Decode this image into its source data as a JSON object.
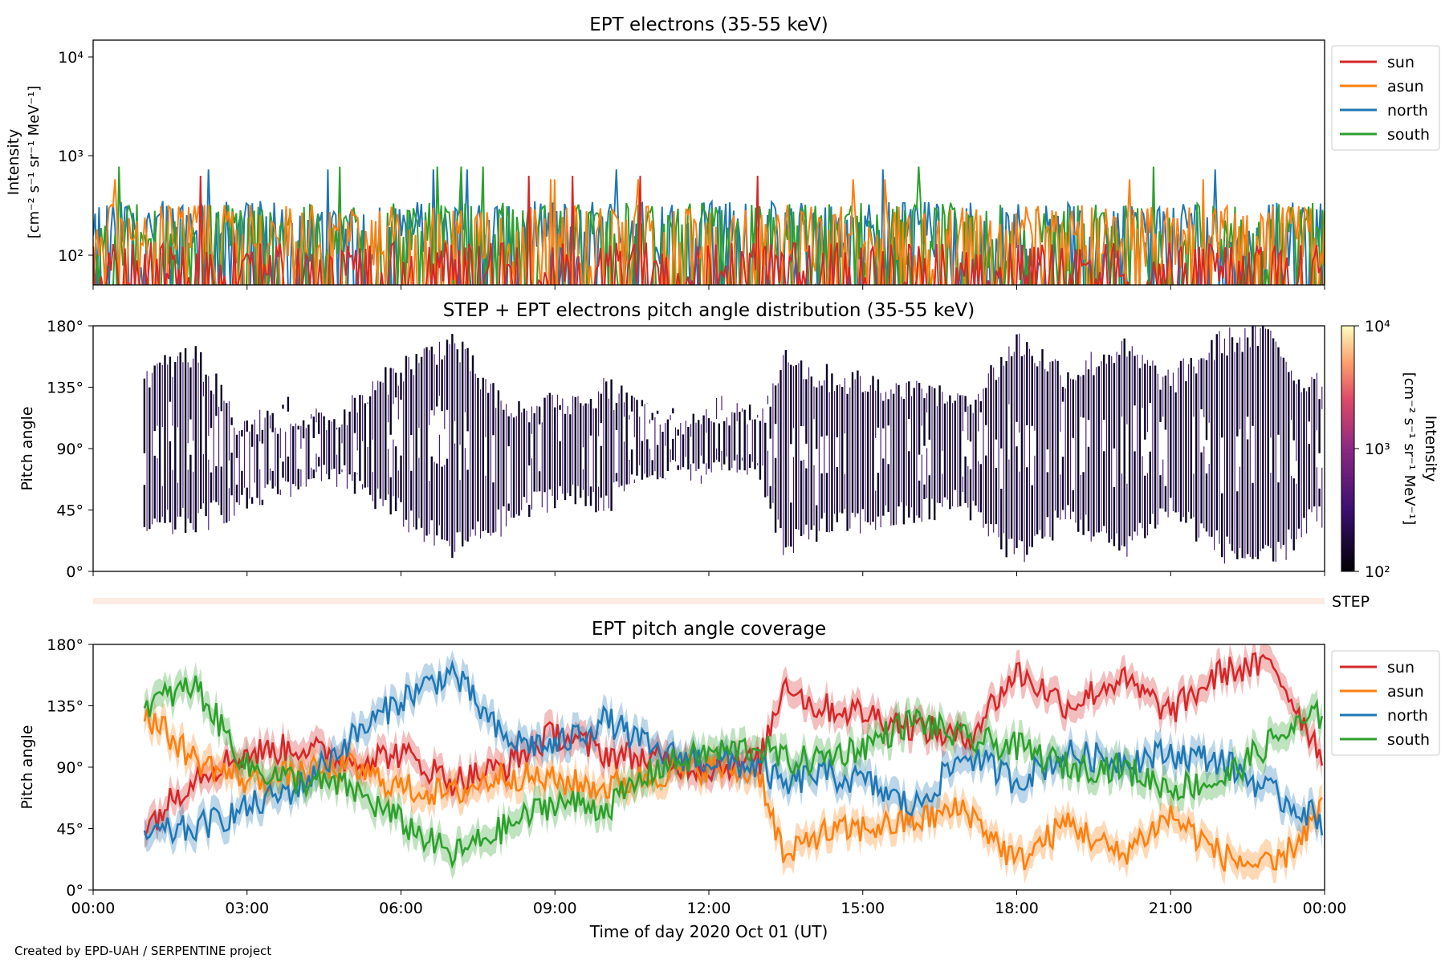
{
  "figure": {
    "credit": "Created by EPD-UAH / SERPENTINE project",
    "xlabel": "Time of day 2020 Oct 01 (UT)",
    "xticks": [
      "00:00",
      "03:00",
      "06:00",
      "09:00",
      "12:00",
      "15:00",
      "18:00",
      "21:00",
      "00:00"
    ],
    "colors": {
      "sun": "#d62728",
      "asun": "#ff7f0e",
      "north": "#1f77b4",
      "south": "#2ca02c"
    },
    "step_band_label": "STEP"
  },
  "chart_data": [
    {
      "type": "line",
      "title": "EPT electrons (35-55 keV)",
      "ylabel_line1": "Intensity",
      "ylabel_line2": "[cm⁻² s⁻¹ sr⁻¹ MeV⁻¹]",
      "yscale": "log",
      "ylim": [
        55,
        14000
      ],
      "yticks": [
        "10²",
        "10³",
        "10⁴"
      ],
      "xlim_hours": [
        0,
        24
      ],
      "legend_placement": "outside-top-right",
      "series": [
        {
          "name": "sun",
          "color": "#d62728",
          "baseline": 90,
          "peak": 650
        },
        {
          "name": "asun",
          "color": "#ff7f0e",
          "baseline": 210,
          "peak": 600
        },
        {
          "name": "north",
          "color": "#1f77b4",
          "baseline": 230,
          "peak": 750
        },
        {
          "name": "south",
          "color": "#2ca02c",
          "baseline": 220,
          "peak": 800
        }
      ]
    },
    {
      "type": "heatmap",
      "title": "STEP + EPT electrons pitch angle distribution (35-55 keV)",
      "ylabel": "Pitch angle",
      "yticks": [
        "0°",
        "45°",
        "90°",
        "135°",
        "180°"
      ],
      "ylim": [
        0,
        180
      ],
      "colorbar": {
        "label_line1": "Intensity",
        "label_line2": "[cm⁻² s⁻¹ sr⁻¹ MeV⁻¹]",
        "scale": "log",
        "range": [
          100,
          10000
        ],
        "ticks": [
          "10²",
          "10³",
          "10⁴"
        ]
      }
    },
    {
      "type": "line",
      "title": "EPT pitch angle coverage",
      "ylabel": "Pitch angle",
      "yticks": [
        "0°",
        "45°",
        "90°",
        "135°",
        "180°"
      ],
      "ylim": [
        0,
        180
      ],
      "legend_placement": "outside-top-right",
      "series": [
        {
          "name": "sun",
          "color": "#d62728",
          "x": [
            1,
            2,
            3,
            4,
            5,
            6,
            7,
            8,
            9,
            10,
            11,
            12,
            13,
            13.5,
            14,
            15,
            16,
            17,
            18,
            19,
            20,
            21,
            22,
            23,
            24
          ],
          "y": [
            45,
            85,
            100,
            105,
            95,
            100,
            80,
            90,
            115,
            100,
            95,
            90,
            95,
            155,
            135,
            130,
            120,
            110,
            160,
            135,
            155,
            130,
            160,
            165,
            95
          ]
        },
        {
          "name": "asun",
          "color": "#ff7f0e",
          "x": [
            1,
            2,
            3,
            4,
            5,
            6,
            7,
            8,
            9,
            10,
            11,
            12,
            13,
            13.5,
            14,
            15,
            16,
            17,
            18,
            19,
            20,
            21,
            22,
            23,
            24
          ],
          "y": [
            130,
            95,
            80,
            85,
            90,
            75,
            70,
            85,
            80,
            75,
            85,
            90,
            85,
            20,
            40,
            45,
            50,
            60,
            20,
            50,
            25,
            55,
            25,
            15,
            60
          ]
        },
        {
          "name": "north",
          "color": "#1f77b4",
          "x": [
            1,
            2,
            3,
            4,
            5,
            6,
            7,
            8,
            9,
            10,
            11,
            12,
            13,
            13.5,
            14,
            15,
            16,
            17,
            18,
            19,
            20,
            21,
            22,
            23,
            24
          ],
          "y": [
            40,
            45,
            60,
            75,
            110,
            140,
            160,
            110,
            105,
            125,
            100,
            95,
            90,
            75,
            85,
            80,
            60,
            100,
            80,
            100,
            95,
            100,
            95,
            70,
            50
          ]
        },
        {
          "name": "south",
          "color": "#2ca02c",
          "x": [
            1,
            2,
            3,
            4,
            5,
            6,
            7,
            8,
            9,
            10,
            11,
            12,
            13,
            13.5,
            14,
            15,
            16,
            17,
            18,
            19,
            20,
            21,
            22,
            23,
            24
          ],
          "y": [
            135,
            150,
            90,
            80,
            75,
            50,
            25,
            45,
            65,
            60,
            90,
            100,
            105,
            95,
            95,
            105,
            125,
            110,
            105,
            90,
            90,
            75,
            80,
            110,
            130
          ]
        }
      ]
    }
  ]
}
